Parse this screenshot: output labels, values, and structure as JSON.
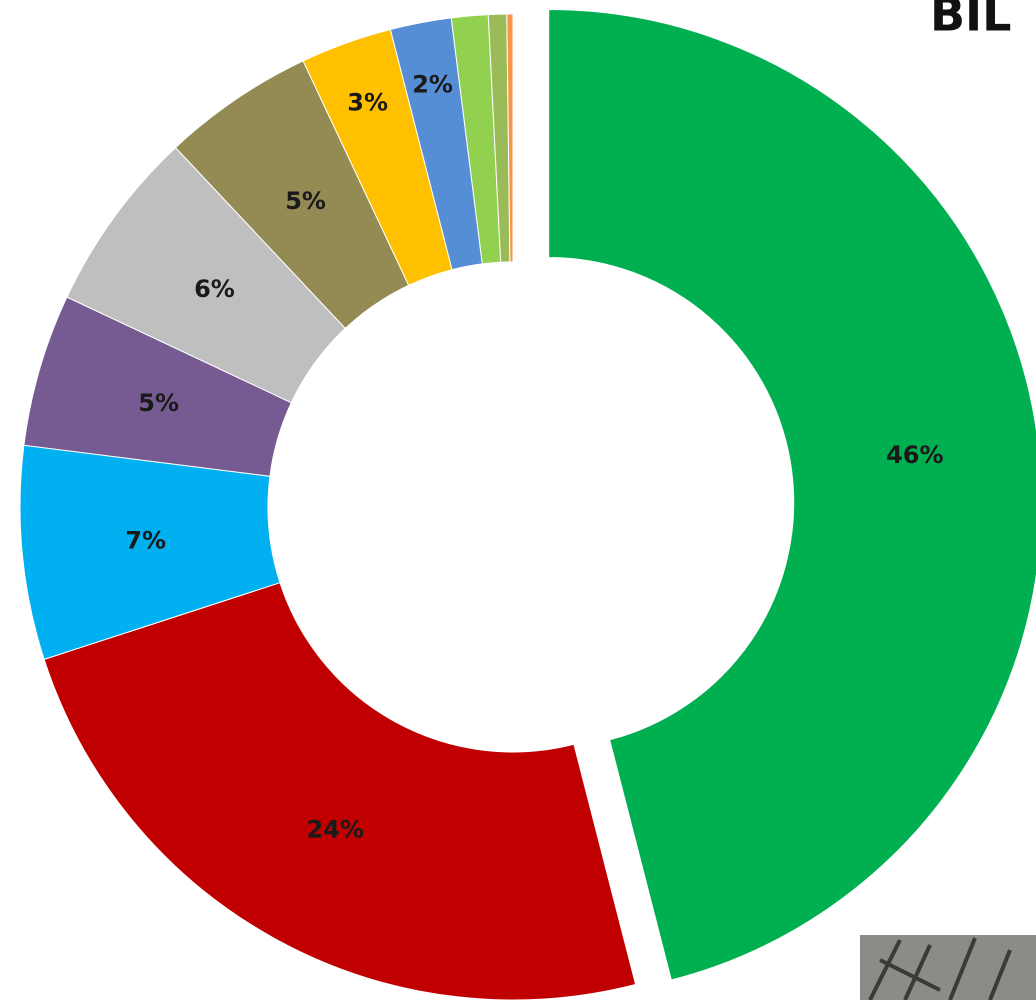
{
  "chart_data": {
    "type": "donut",
    "title": "BIL",
    "values": [
      46,
      24,
      7,
      5,
      6,
      5,
      3,
      2,
      1.2,
      0.6,
      0.2
    ],
    "value_labels": [
      "46%",
      "24%",
      "7%",
      "5%",
      "6%",
      "5%",
      "3%",
      "2%",
      null,
      null,
      null
    ],
    "colors": [
      "#00b050",
      "#c00000",
      "#00b0f0",
      "#765a92",
      "#bfbfbf",
      "#948a54",
      "#ffc000",
      "#558ed5",
      "#92d050",
      "#9bbb59",
      "#f79646"
    ],
    "explode": [
      0
    ]
  }
}
